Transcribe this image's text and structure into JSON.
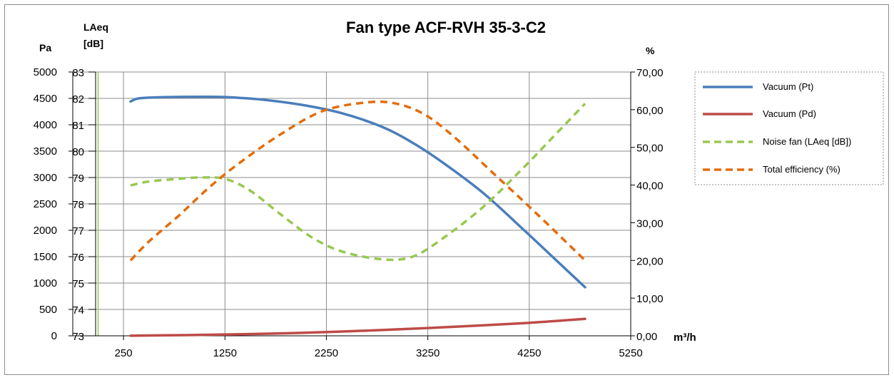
{
  "chart_data": {
    "type": "line",
    "title": "Fan type ACF-RVH 35-3-C2",
    "xlabel": "m³/h",
    "x_ticks": [
      "250",
      "1250",
      "2250",
      "3250",
      "4250",
      "5250"
    ],
    "xlim": [
      -250,
      5250
    ],
    "axes": {
      "pressure": {
        "label": "Pa",
        "ylim": [
          0,
          5000
        ],
        "ticks": [
          "0",
          "500",
          "1000",
          "1500",
          "2000",
          "2500",
          "3000",
          "3500",
          "4000",
          "4500",
          "5000"
        ]
      },
      "noise": {
        "label_line1": "LAeq",
        "label_line2": "[dB]",
        "ylim": [
          73,
          83
        ],
        "ticks": [
          "73",
          "74",
          "75",
          "76",
          "77",
          "78",
          "79",
          "80",
          "81",
          "82",
          "83"
        ]
      },
      "efficiency": {
        "label": "%",
        "ylim": [
          0,
          70
        ],
        "ticks": [
          "0,00",
          "10,00",
          "20,00",
          "30,00",
          "40,00",
          "50,00",
          "60,00",
          "70,00"
        ]
      }
    },
    "grid": true,
    "legend_position": "right",
    "series": [
      {
        "name": "Vacuum (Pt)",
        "axis": "pressure",
        "color": "#4a7ebb",
        "dash": "solid",
        "points": [
          [
            320,
            4440
          ],
          [
            400,
            4500
          ],
          [
            600,
            4520
          ],
          [
            1000,
            4530
          ],
          [
            1250,
            4525
          ],
          [
            1600,
            4480
          ],
          [
            2000,
            4380
          ],
          [
            2400,
            4220
          ],
          [
            2800,
            3960
          ],
          [
            3100,
            3660
          ],
          [
            3400,
            3280
          ],
          [
            3800,
            2700
          ],
          [
            4200,
            2000
          ],
          [
            4500,
            1460
          ],
          [
            4800,
            920
          ]
        ]
      },
      {
        "name": "Vacuum (Pd)",
        "axis": "pressure",
        "color": "#be4b48",
        "dash": "solid",
        "points": [
          [
            320,
            2
          ],
          [
            800,
            12
          ],
          [
            1250,
            25
          ],
          [
            2000,
            55
          ],
          [
            2800,
            110
          ],
          [
            3500,
            170
          ],
          [
            4200,
            240
          ],
          [
            4800,
            320
          ]
        ]
      },
      {
        "name": "Noise fan (LAeq [dB])",
        "axis": "noise",
        "color": "#98c850",
        "dash": "dashed",
        "points": [
          [
            320,
            78.7
          ],
          [
            500,
            78.85
          ],
          [
            800,
            78.95
          ],
          [
            1000,
            79.0
          ],
          [
            1250,
            78.95
          ],
          [
            1500,
            78.5
          ],
          [
            1800,
            77.6
          ],
          [
            2100,
            76.75
          ],
          [
            2400,
            76.2
          ],
          [
            2800,
            75.9
          ],
          [
            3100,
            76.0
          ],
          [
            3400,
            76.7
          ],
          [
            3800,
            77.9
          ],
          [
            4200,
            79.4
          ],
          [
            4500,
            80.6
          ],
          [
            4800,
            81.8
          ]
        ]
      },
      {
        "name": "Total efficiency (%)",
        "axis": "efficiency",
        "color": "#e46c0a",
        "dash": "dashed",
        "points": [
          [
            320,
            20
          ],
          [
            500,
            25
          ],
          [
            800,
            32
          ],
          [
            1100,
            39.5
          ],
          [
            1400,
            46
          ],
          [
            1800,
            53.5
          ],
          [
            2200,
            59.5
          ],
          [
            2600,
            61.8
          ],
          [
            2900,
            61.8
          ],
          [
            3200,
            59
          ],
          [
            3500,
            53
          ],
          [
            3900,
            43
          ],
          [
            4300,
            33
          ],
          [
            4800,
            20
          ]
        ]
      }
    ]
  }
}
